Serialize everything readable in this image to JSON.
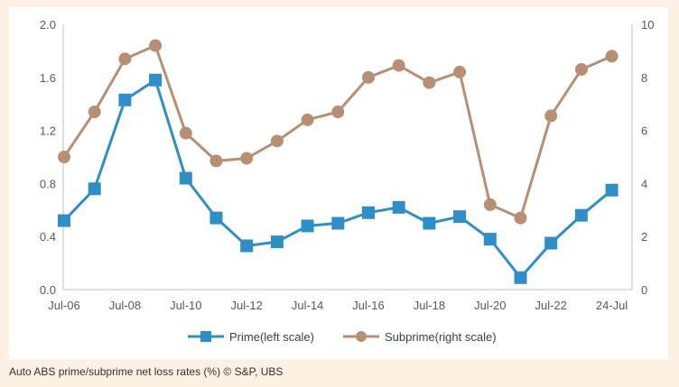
{
  "caption": "Auto ABS prime/subprime net loss rates (%) © S&P, UBS",
  "chart_data": {
    "type": "line",
    "categories": [
      "Jul-06",
      "Jul-07",
      "Jul-08",
      "Jul-09",
      "Jul-10",
      "Jul-11",
      "Jul-12",
      "Jul-13",
      "Jul-14",
      "Jul-15",
      "Jul-16",
      "Jul-17",
      "Jul-18",
      "Jul-19",
      "Jul-20",
      "Jul-21",
      "Jul-22",
      "Jul-23",
      "24-Jul"
    ],
    "x_tick_labels": [
      "Jul-06",
      "Jul-08",
      "Jul-10",
      "Jul-12",
      "Jul-14",
      "Jul-16",
      "Jul-18",
      "Jul-20",
      "Jul-22",
      "24-Jul"
    ],
    "y_left": {
      "min": 0,
      "max": 2.0,
      "ticks": [
        "0.0",
        "0.4",
        "0.8",
        "1.2",
        "1.6",
        "2.0"
      ]
    },
    "y_right": {
      "min": 0,
      "max": 10,
      "ticks": [
        "0",
        "2",
        "4",
        "6",
        "8",
        "10"
      ]
    },
    "grid": false,
    "legend_position": "bottom",
    "series": [
      {
        "name": "Prime(left scale)",
        "axis": "left",
        "color": "#2e8fc8",
        "marker": "square",
        "values": [
          0.52,
          0.76,
          1.43,
          1.58,
          0.84,
          0.54,
          0.33,
          0.36,
          0.48,
          0.5,
          0.58,
          0.62,
          0.5,
          0.55,
          0.38,
          0.09,
          0.35,
          0.56,
          0.75
        ]
      },
      {
        "name": "Subprime(right scale)",
        "axis": "right",
        "color": "#b98f74",
        "marker": "circle",
        "values": [
          5.0,
          6.7,
          8.7,
          9.2,
          5.9,
          4.85,
          4.95,
          5.6,
          6.4,
          6.7,
          8.0,
          8.45,
          7.8,
          8.2,
          3.2,
          2.7,
          6.55,
          8.3,
          8.8
        ]
      }
    ]
  }
}
